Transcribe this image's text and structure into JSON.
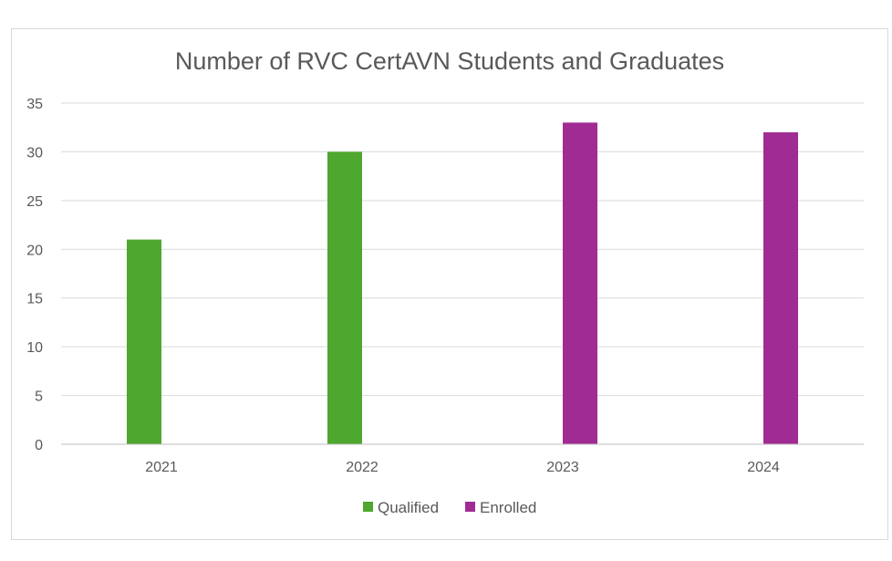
{
  "chart_data": {
    "type": "bar",
    "title": "Number of RVC CertAVN Students and Graduates",
    "xlabel": "",
    "ylabel": "",
    "categories": [
      "2021",
      "2022",
      "2023",
      "2024"
    ],
    "series": [
      {
        "name": "Qualified",
        "color": "#4ea72e",
        "values": [
          21,
          30,
          null,
          null
        ]
      },
      {
        "name": "Enrolled",
        "color": "#a02b93",
        "values": [
          null,
          null,
          33,
          32
        ]
      }
    ],
    "ylim": [
      0,
      35
    ],
    "yticks": [
      "0",
      "5",
      "10",
      "15",
      "20",
      "25",
      "30",
      "35"
    ],
    "grid": true,
    "legend": "bottom"
  }
}
